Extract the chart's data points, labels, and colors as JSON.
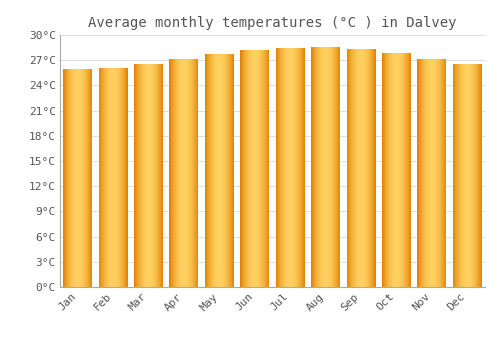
{
  "title": "Average monthly temperatures (°C ) in Dalvey",
  "months": [
    "Jan",
    "Feb",
    "Mar",
    "Apr",
    "May",
    "Jun",
    "Jul",
    "Aug",
    "Sep",
    "Oct",
    "Nov",
    "Dec"
  ],
  "values": [
    26.0,
    26.1,
    26.5,
    27.2,
    27.7,
    28.2,
    28.5,
    28.6,
    28.3,
    27.8,
    27.2,
    26.5
  ],
  "bar_color_edge": "#E08000",
  "bar_color_center": "#FFD060",
  "background_color": "#FFFFFF",
  "grid_color": "#DDDDDD",
  "text_color": "#555555",
  "ylim": [
    0,
    30
  ],
  "yticks": [
    0,
    3,
    6,
    9,
    12,
    15,
    18,
    21,
    24,
    27,
    30
  ],
  "ytick_labels": [
    "0°C",
    "3°C",
    "6°C",
    "9°C",
    "12°C",
    "15°C",
    "18°C",
    "21°C",
    "24°C",
    "27°C",
    "30°C"
  ],
  "title_fontsize": 10,
  "tick_fontsize": 8,
  "bar_width": 0.82,
  "gradient_steps": 100
}
